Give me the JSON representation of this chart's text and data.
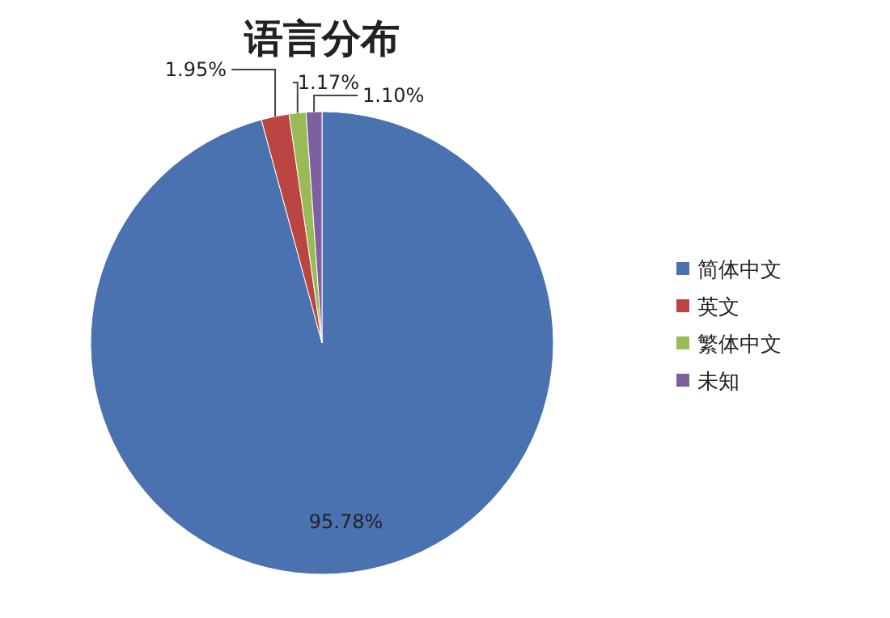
{
  "chart_data": {
    "type": "pie",
    "title": "语言分布",
    "categories": [
      "简体中文",
      "英文",
      "繁体中文",
      "未知"
    ],
    "values": [
      95.78,
      1.95,
      1.17,
      1.1
    ],
    "colors": [
      "#4a72b0",
      "#bb4542",
      "#99ba55",
      "#7d60a0"
    ],
    "value_labels": [
      "95.78%",
      "1.95%",
      "1.17%",
      "1.10%"
    ],
    "legend": "right"
  }
}
